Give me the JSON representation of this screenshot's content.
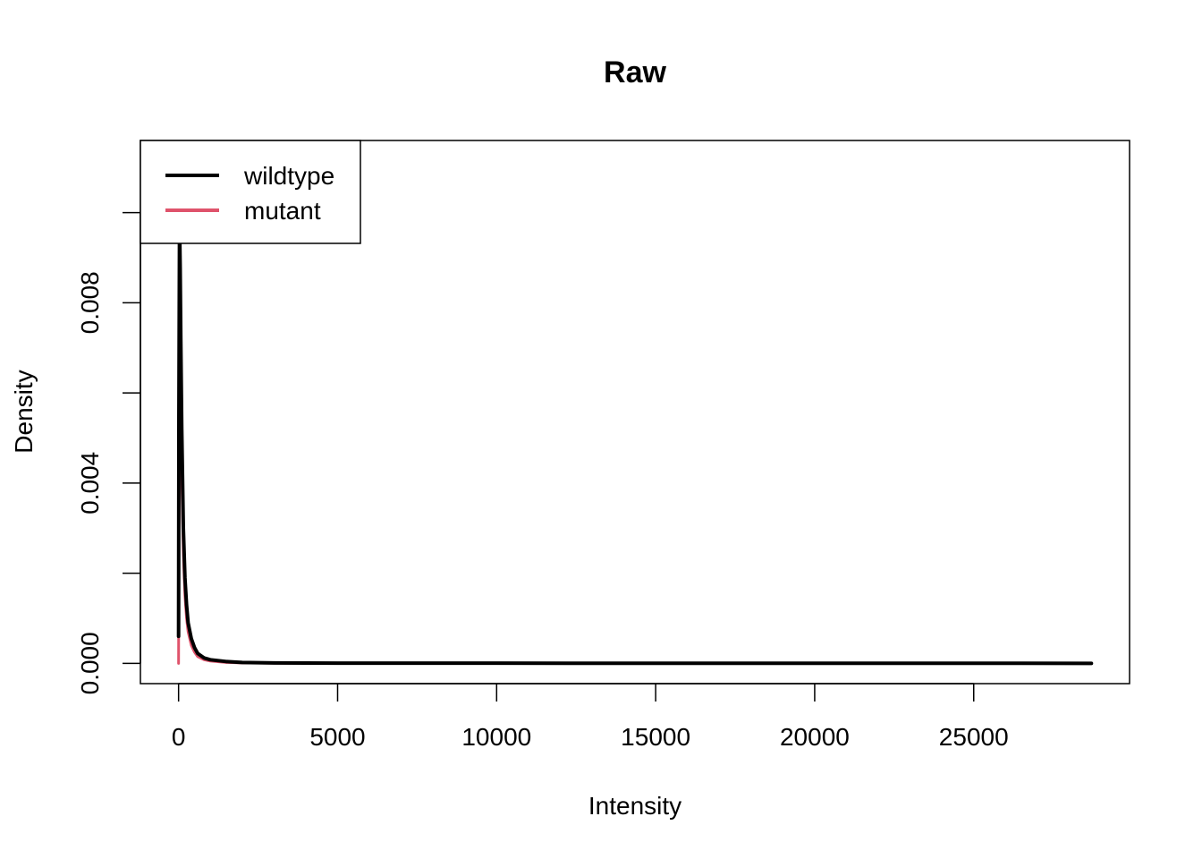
{
  "chart_data": {
    "type": "line",
    "title": "Raw",
    "xlabel": "Intensity",
    "ylabel": "Density",
    "xlim": [
      -1200,
      29900
    ],
    "ylim": [
      -0.00045,
      0.0116
    ],
    "x_ticks": [
      0,
      5000,
      10000,
      15000,
      20000,
      25000
    ],
    "y_ticks": [
      0.0,
      0.002,
      0.004,
      0.006,
      0.008,
      0.01
    ],
    "y_tick_labels": [
      "0.000",
      "",
      "0.004",
      "",
      "0.008",
      ""
    ],
    "grid": false,
    "legend": {
      "position": "top-left",
      "entries": [
        "wildtype",
        "mutant"
      ]
    },
    "series": [
      {
        "name": "wildtype",
        "color": "#000000",
        "x": [
          0,
          10,
          30,
          50,
          70,
          100,
          150,
          200,
          250,
          300,
          400,
          500,
          600,
          800,
          1000,
          1500,
          2000,
          3000,
          5000,
          10000,
          15000,
          20000,
          25000,
          28700
        ],
        "y": [
          0.0006,
          0.0055,
          0.0098,
          0.0088,
          0.0072,
          0.0052,
          0.003,
          0.0019,
          0.0013,
          0.0009,
          0.00055,
          0.00035,
          0.00022,
          0.00012,
          8e-05,
          4e-05,
          2e-05,
          1e-05,
          5e-06,
          3e-06,
          2e-06,
          2e-06,
          1e-06,
          0.0
        ]
      },
      {
        "name": "mutant",
        "color": "#DF536B",
        "x": [
          0,
          10,
          30,
          50,
          70,
          100,
          150,
          200,
          250,
          300,
          400,
          500,
          600,
          800,
          1000,
          1500,
          2000,
          3000,
          5000
        ],
        "y": [
          0.0,
          0.003,
          0.008,
          0.0075,
          0.006,
          0.0042,
          0.0024,
          0.0015,
          0.001,
          0.0007,
          0.0004,
          0.00025,
          0.00015,
          8e-05,
          5e-05,
          2e-05,
          1e-05,
          5e-06,
          2e-06
        ]
      }
    ]
  }
}
